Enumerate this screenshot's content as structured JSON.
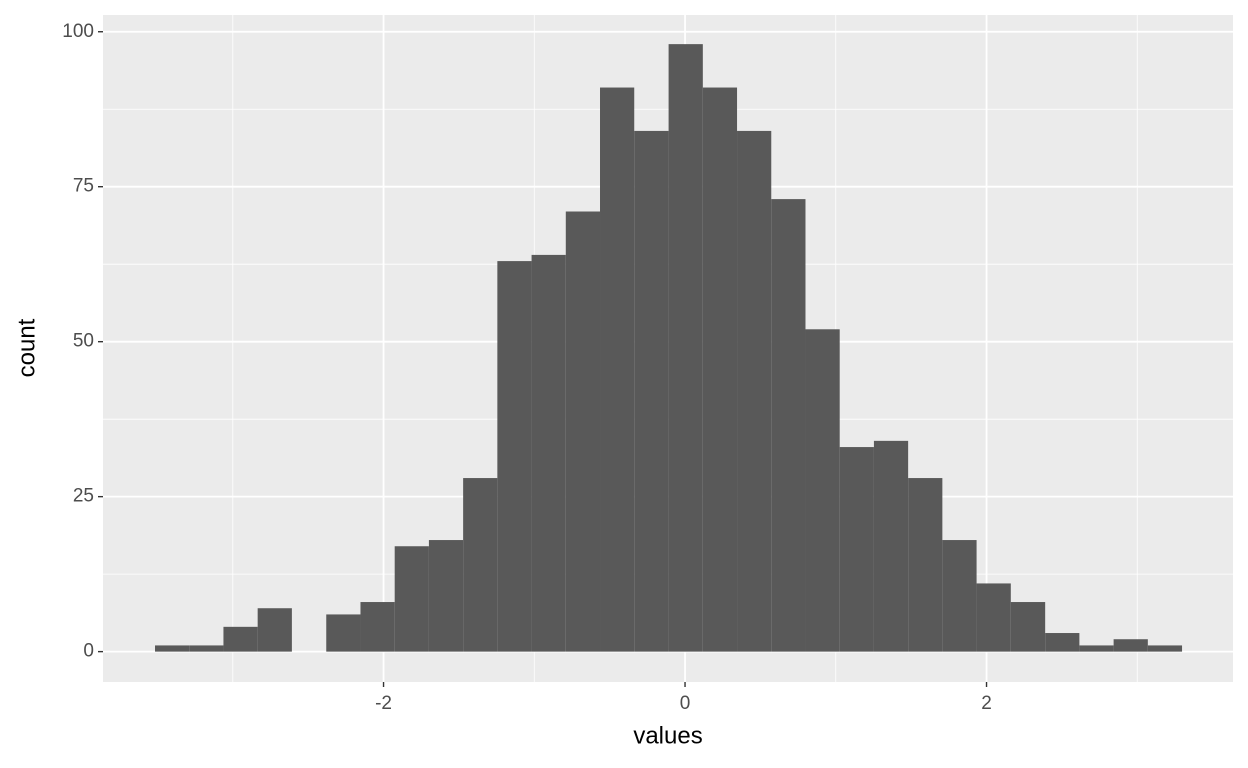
{
  "chart_data": {
    "type": "histogram",
    "x_label": "values",
    "y_label": "count",
    "bins": [
      -3.516,
      -3.289,
      -3.062,
      -2.835,
      -2.608,
      -2.38,
      -2.153,
      -1.926,
      -1.699,
      -1.472,
      -1.245,
      -1.018,
      -0.791,
      -0.564,
      -0.337,
      -0.109,
      0.118,
      0.345,
      0.572,
      0.799,
      1.026,
      1.253,
      1.48,
      1.707,
      1.934,
      2.161,
      2.389,
      2.616,
      2.843,
      3.07,
      3.297
    ],
    "values": [
      1,
      1,
      4,
      7,
      0,
      6,
      8,
      17,
      18,
      28,
      63,
      64,
      71,
      91,
      84,
      98,
      91,
      84,
      73,
      52,
      33,
      34,
      28,
      18,
      11,
      8,
      3,
      1,
      2,
      1
    ],
    "color": "#595959",
    "xlim": [
      -3.861,
      3.635
    ],
    "xticks": [
      -2,
      0,
      2
    ],
    "ylim": [
      -4.9,
      102.7
    ],
    "yticks": [
      0,
      25,
      50,
      75,
      100
    ],
    "grid": true
  }
}
